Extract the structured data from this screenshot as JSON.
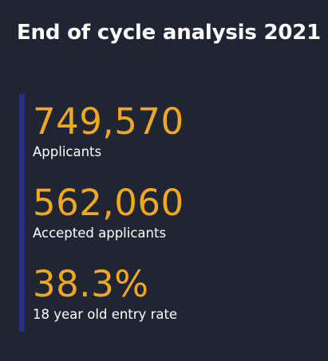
{
  "card": {
    "title": "End of cycle analysis 2021",
    "stats": [
      {
        "value": "749,570",
        "label": "Applicants"
      },
      {
        "value": "562,060",
        "label": "Accepted applicants"
      },
      {
        "value": "38.3%",
        "label": "18 year old entry rate"
      }
    ]
  },
  "colors": {
    "background": "#1f2532",
    "title_text": "#ffffff",
    "stat_value": "#f2a81d",
    "stat_label": "#ffffff",
    "accent_bar": "#26307a"
  }
}
